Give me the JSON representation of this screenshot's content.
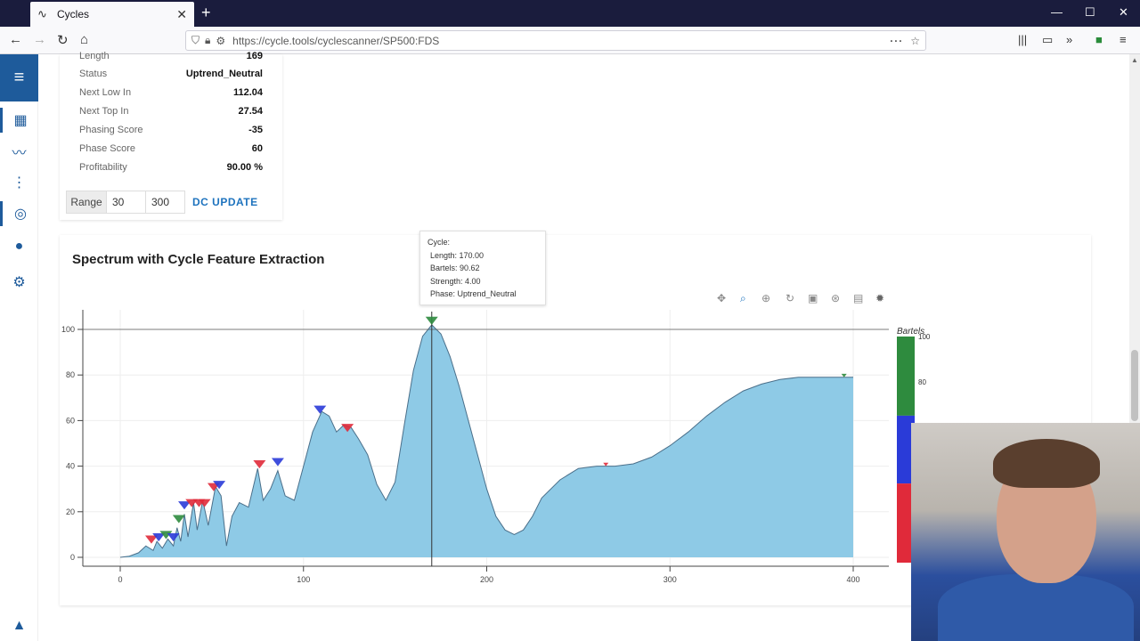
{
  "browser": {
    "tab_title": "Cycles",
    "url": "https://cycle.tools/cyclescanner/SP500:FDS"
  },
  "info_panel": {
    "rows": [
      {
        "label": "Length",
        "value": "169"
      },
      {
        "label": "Status",
        "value": "Uptrend_Neutral"
      },
      {
        "label": "Next Low In",
        "value": "112.04"
      },
      {
        "label": "Next Top In",
        "value": "27.54"
      },
      {
        "label": "Phasing Score",
        "value": "-35"
      },
      {
        "label": "Phase Score",
        "value": "60"
      },
      {
        "label": "Profitability",
        "value": "90.00 %"
      }
    ],
    "range_label": "Range",
    "range_min": "30",
    "range_max": "300",
    "update_button": "DC UPDATE"
  },
  "chart": {
    "title": "Spectrum with Cycle Feature Extraction",
    "tooltip": {
      "header": "Cycle:",
      "length": "Length: 170.00",
      "bartels": "Bartels: 90.62",
      "strength": "Strength: 4.00",
      "phase": "Phase: Uptrend_Neutral"
    },
    "colorbar_title": "Bartels",
    "colorbar_ticks": [
      "100",
      "80"
    ]
  },
  "chart_data": {
    "type": "area",
    "title": "Spectrum with Cycle Feature Extraction",
    "xlabel": "",
    "ylabel": "",
    "xlim": [
      -20,
      420
    ],
    "ylim": [
      -5,
      108
    ],
    "x_ticks": [
      0,
      100,
      200,
      300,
      400
    ],
    "y_ticks": [
      0,
      20,
      40,
      60,
      80,
      100
    ],
    "grid": true,
    "colors": {
      "fill": "#8ecae6",
      "line": "#4a6f8a",
      "green": "#2e8b3e",
      "blue": "#2a3bd8",
      "red": "#e02a3a"
    },
    "series": [
      {
        "values": [
          [
            0,
            0
          ],
          [
            5,
            0.5
          ],
          [
            10,
            2
          ],
          [
            14,
            5
          ],
          [
            18,
            3
          ],
          [
            20,
            7
          ],
          [
            23,
            4
          ],
          [
            26,
            8
          ],
          [
            29,
            5
          ],
          [
            31,
            13
          ],
          [
            33,
            7
          ],
          [
            35,
            19
          ],
          [
            37,
            9
          ],
          [
            40,
            24
          ],
          [
            42,
            12
          ],
          [
            45,
            25
          ],
          [
            48,
            14
          ],
          [
            52,
            31
          ],
          [
            55,
            27
          ],
          [
            58,
            5
          ],
          [
            61,
            18
          ],
          [
            65,
            24
          ],
          [
            70,
            22
          ],
          [
            75,
            39
          ],
          [
            78,
            25
          ],
          [
            82,
            30
          ],
          [
            86,
            38
          ],
          [
            90,
            27
          ],
          [
            95,
            25
          ],
          [
            100,
            40
          ],
          [
            105,
            55
          ],
          [
            110,
            64
          ],
          [
            114,
            62
          ],
          [
            118,
            55
          ],
          [
            122,
            58
          ],
          [
            126,
            57
          ],
          [
            130,
            52
          ],
          [
            135,
            45
          ],
          [
            140,
            32
          ],
          [
            145,
            25
          ],
          [
            150,
            33
          ],
          [
            155,
            58
          ],
          [
            160,
            82
          ],
          [
            165,
            97
          ],
          [
            170,
            102
          ],
          [
            175,
            98
          ],
          [
            180,
            88
          ],
          [
            185,
            75
          ],
          [
            190,
            60
          ],
          [
            195,
            45
          ],
          [
            200,
            30
          ],
          [
            205,
            18
          ],
          [
            210,
            12
          ],
          [
            215,
            10
          ],
          [
            220,
            12
          ],
          [
            225,
            18
          ],
          [
            230,
            26
          ],
          [
            240,
            34
          ],
          [
            250,
            39
          ],
          [
            260,
            40
          ],
          [
            270,
            40
          ],
          [
            280,
            41
          ],
          [
            290,
            44
          ],
          [
            300,
            49
          ],
          [
            310,
            55
          ],
          [
            320,
            62
          ],
          [
            330,
            68
          ],
          [
            340,
            73
          ],
          [
            350,
            76
          ],
          [
            360,
            78
          ],
          [
            370,
            79
          ],
          [
            380,
            79
          ],
          [
            390,
            79
          ],
          [
            400,
            79
          ]
        ]
      }
    ],
    "cycle_markers": [
      {
        "x": 17,
        "y": 6,
        "color": "red"
      },
      {
        "x": 21,
        "y": 7,
        "color": "blue"
      },
      {
        "x": 25,
        "y": 8,
        "color": "green"
      },
      {
        "x": 29,
        "y": 7,
        "color": "blue"
      },
      {
        "x": 32,
        "y": 15,
        "color": "green"
      },
      {
        "x": 35,
        "y": 21,
        "color": "blue"
      },
      {
        "x": 39,
        "y": 22,
        "color": "red"
      },
      {
        "x": 43,
        "y": 22,
        "color": "red"
      },
      {
        "x": 46,
        "y": 22,
        "color": "red"
      },
      {
        "x": 51,
        "y": 29,
        "color": "red"
      },
      {
        "x": 54,
        "y": 30,
        "color": "blue"
      },
      {
        "x": 76,
        "y": 39,
        "color": "red"
      },
      {
        "x": 86,
        "y": 40,
        "color": "blue"
      },
      {
        "x": 109,
        "y": 63,
        "color": "blue"
      },
      {
        "x": 124,
        "y": 55,
        "color": "red"
      },
      {
        "x": 170,
        "y": 102,
        "color": "green"
      },
      {
        "x": 265,
        "y": 40,
        "color": "red"
      },
      {
        "x": 395,
        "y": 79,
        "color": "green"
      }
    ],
    "crosshair_x": 170,
    "hline_y": 100,
    "colorbar": [
      {
        "color": "green",
        "from": 100,
        "to": 65
      },
      {
        "color": "blue",
        "from": 65,
        "to": 35
      },
      {
        "color": "red",
        "from": 35,
        "to": 0
      }
    ]
  }
}
